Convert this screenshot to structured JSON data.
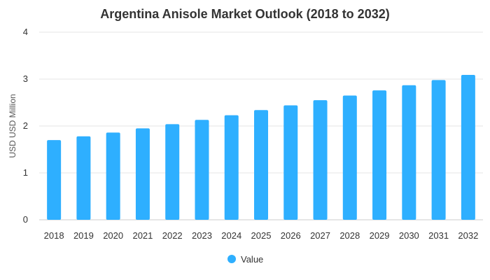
{
  "chart_data": {
    "type": "bar",
    "title": "Argentina Anisole Market Outlook (2018 to 2032)",
    "xlabel": "",
    "ylabel": "USD USD Million",
    "categories": [
      "2018",
      "2019",
      "2020",
      "2021",
      "2022",
      "2023",
      "2024",
      "2025",
      "2026",
      "2027",
      "2028",
      "2029",
      "2030",
      "2031",
      "2032"
    ],
    "series": [
      {
        "name": "Value",
        "color": "#2EAFFF",
        "values": [
          1.7,
          1.78,
          1.86,
          1.95,
          2.04,
          2.13,
          2.23,
          2.34,
          2.44,
          2.55,
          2.65,
          2.76,
          2.87,
          2.98,
          3.09
        ]
      }
    ],
    "ylim": [
      0,
      4
    ],
    "yticks": [
      "0",
      "1",
      "2",
      "3",
      "4"
    ],
    "grid": true,
    "legend_position": "bottom-center"
  }
}
